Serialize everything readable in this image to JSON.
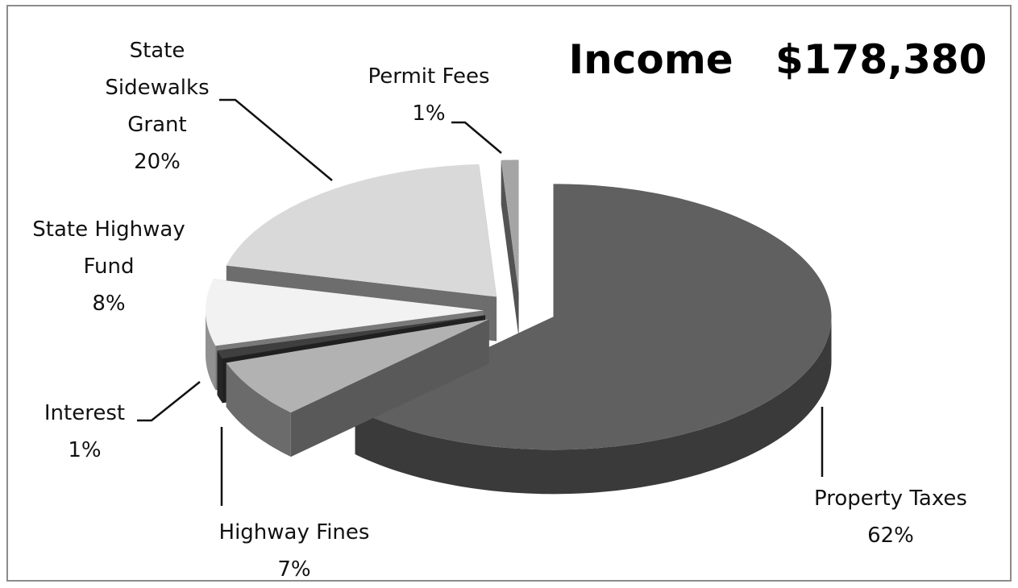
{
  "chart_data": {
    "type": "pie",
    "title": "Income   $178,380",
    "categories": [
      "Property Taxes",
      "Highway Fines",
      "Interest",
      "State Highway Fund",
      "State Sidewalks Grant",
      "Permit Fees"
    ],
    "values": [
      62,
      7,
      1,
      8,
      20,
      1
    ],
    "value_labels": [
      "62%",
      "7%",
      "1%",
      "8%",
      "20%",
      "1%"
    ],
    "colors": [
      "#606060",
      "#b2b2b2",
      "#3f3f3f",
      "#f2f2f2",
      "#d9d9d9",
      "#a5a5a5"
    ]
  }
}
